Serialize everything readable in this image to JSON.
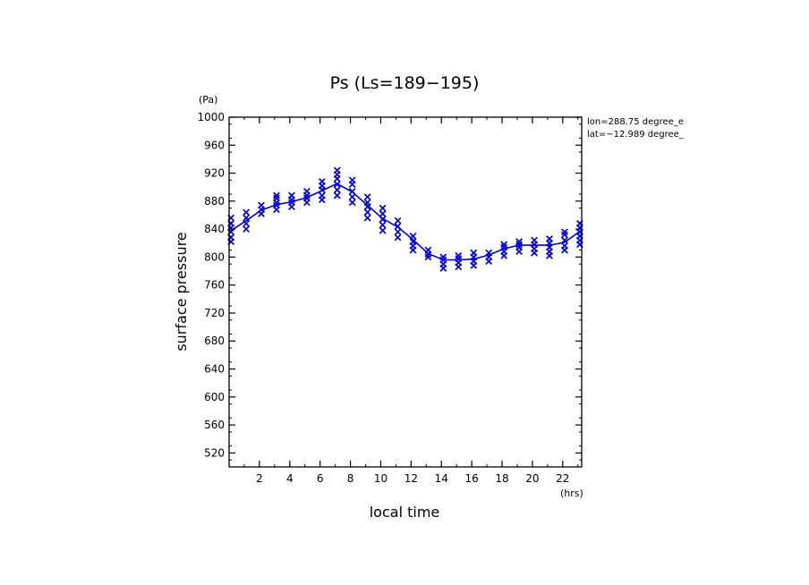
{
  "chart_data": {
    "type": "line",
    "title": "Ps (Ls=189−195)",
    "xlabel": "local time",
    "ylabel": "surface pressure",
    "x_unit": "(hrs)",
    "y_unit": "(Pa)",
    "xlim": [
      0,
      23.25
    ],
    "ylim": [
      500,
      1000
    ],
    "x_ticks": [
      2,
      4,
      6,
      8,
      10,
      12,
      14,
      16,
      18,
      20,
      22
    ],
    "y_ticks": [
      520,
      560,
      600,
      640,
      680,
      720,
      760,
      800,
      840,
      880,
      920,
      960,
      1000
    ],
    "grid": false,
    "annotations": [
      "lon=288.75 degree_e",
      "lat=−12.989 degree_"
    ],
    "colors": {
      "series": "#0000dd",
      "axes": "#000000"
    },
    "series": [
      {
        "type": "line",
        "x": [
          0.125,
          1.125,
          2.125,
          3.125,
          4.125,
          5.125,
          6.125,
          7.125,
          8.125,
          9.125,
          10.125,
          11.125,
          12.125,
          13.125,
          14.125,
          15.125,
          16.125,
          17.125,
          18.125,
          19.125,
          20.125,
          21.125,
          22.125,
          23.125
        ],
        "values": [
          838,
          852,
          867,
          875,
          879,
          885,
          895,
          905,
          893,
          874,
          855,
          843,
          825,
          805,
          796,
          796,
          797,
          803,
          812,
          817,
          817,
          817,
          821,
          837
        ]
      },
      {
        "type": "scatter",
        "marker": "x",
        "x": [
          0.125,
          1.125,
          2.125,
          3.125,
          4.125,
          5.125,
          6.125,
          7.125,
          8.125,
          9.125,
          10.125,
          11.125,
          12.125,
          13.125,
          14.125,
          15.125,
          16.125,
          17.125,
          18.125,
          19.125,
          20.125,
          21.125,
          22.125,
          23.125
        ],
        "values_by_x": [
          [
            822,
            828,
            836,
            842,
            848,
            856
          ],
          [
            840,
            848,
            856,
            864
          ],
          [
            862,
            868,
            874
          ],
          [
            868,
            874,
            878,
            884,
            888
          ],
          [
            872,
            878,
            882,
            888
          ],
          [
            878,
            884,
            888,
            894
          ],
          [
            882,
            888,
            896,
            902,
            908
          ],
          [
            888,
            896,
            904,
            912,
            918,
            924
          ],
          [
            878,
            886,
            894,
            904,
            910
          ],
          [
            856,
            864,
            872,
            878,
            886
          ],
          [
            838,
            846,
            854,
            862,
            870
          ],
          [
            828,
            836,
            844,
            852
          ],
          [
            810,
            816,
            822,
            830
          ],
          [
            800,
            804,
            810
          ],
          [
            784,
            790,
            796,
            800
          ],
          [
            786,
            792,
            798,
            802
          ],
          [
            788,
            794,
            800,
            806
          ],
          [
            794,
            800,
            806
          ],
          [
            802,
            808,
            814,
            818
          ],
          [
            808,
            814,
            818,
            822
          ],
          [
            806,
            812,
            818,
            824
          ],
          [
            802,
            808,
            814,
            820,
            826
          ],
          [
            810,
            816,
            824,
            832,
            836
          ],
          [
            818,
            824,
            830,
            836,
            842,
            848
          ]
        ]
      }
    ]
  }
}
